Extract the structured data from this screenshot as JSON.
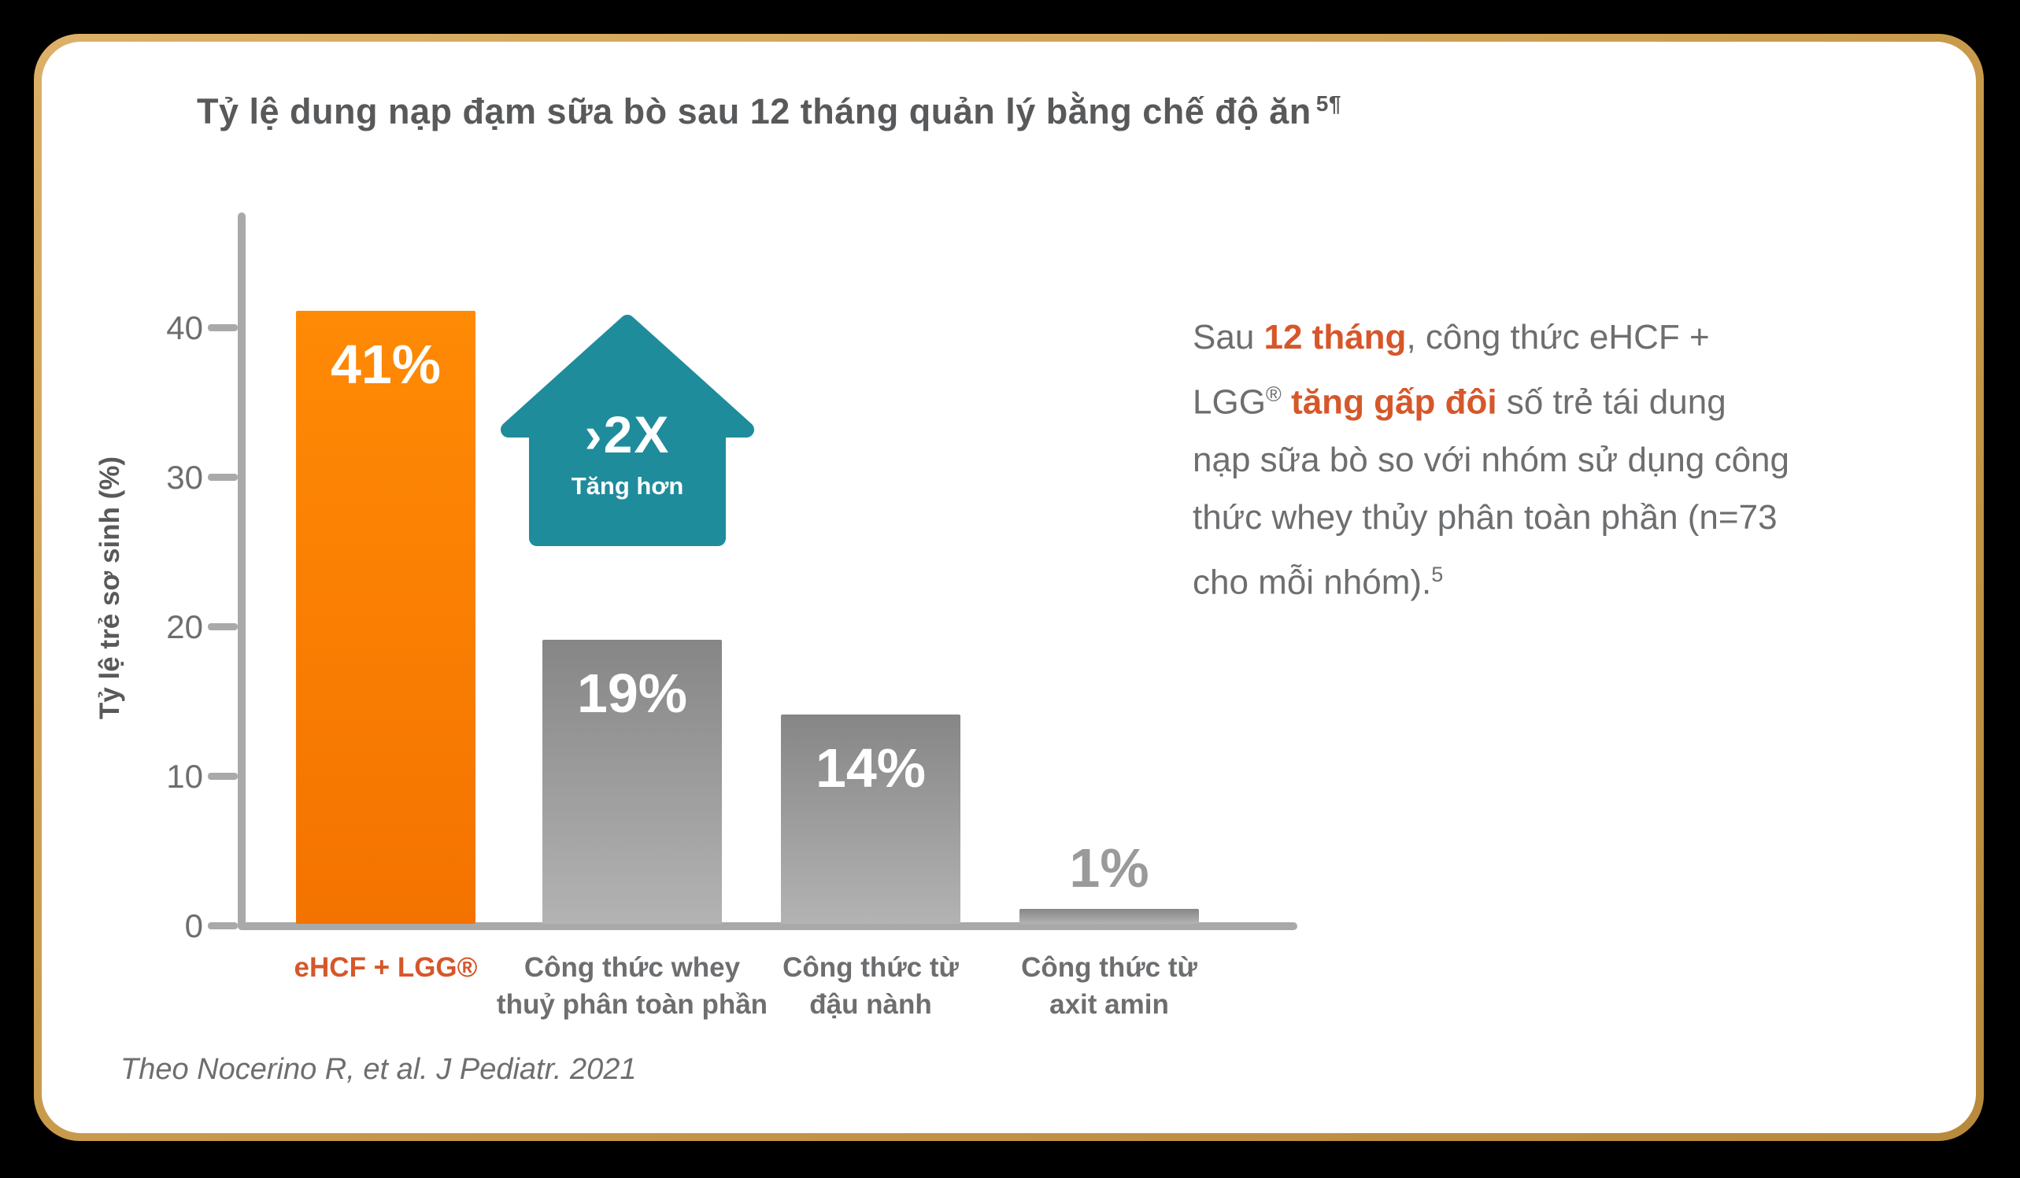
{
  "page": {
    "background_color": "#000000",
    "card_fill": "#ffffff",
    "card_border_gold": "#c89a4b"
  },
  "title": {
    "text": "Tỷ lệ dung nạp đạm sữa bò sau 12 tháng quản lý bằng chế độ ăn",
    "superscript": "5¶",
    "color": "#58595b"
  },
  "chart_data": {
    "type": "bar",
    "title": "Tỷ lệ dung nạp đạm sữa bò sau 12 tháng quản lý bằng chế độ ăn 5¶",
    "xlabel": "",
    "ylabel": "Tỷ lệ trẻ sơ sinh (%)",
    "ylim": [
      0,
      47
    ],
    "yticks": [
      0,
      10,
      20,
      30,
      40
    ],
    "grid": false,
    "legend": "none",
    "categories": [
      "eHCF + LGG®",
      "Công thức whey\nthuỷ phân toàn phần",
      "Công thức từ\nđậu nành",
      "Công thức từ\naxit amin"
    ],
    "values": [
      41,
      19,
      14,
      1
    ],
    "value_labels": [
      "41%",
      "19%",
      "14%",
      "1%"
    ],
    "bar_gradients": [
      {
        "top": "#ff8a05",
        "bottom": "#f47300"
      },
      {
        "top": "#868686",
        "bottom": "#b3b3b3"
      },
      {
        "top": "#868686",
        "bottom": "#b3b3b3"
      },
      {
        "top": "#868686",
        "bottom": "#b3b3b3"
      }
    ],
    "category_colors": [
      "#d6572a",
      "#6d6e70",
      "#6d6e70",
      "#6d6e70"
    ],
    "outside_label_color": "#9a9a9a",
    "axis_color": "#a9a9a9"
  },
  "arrow_badge": {
    "value": "›2X",
    "caption": "Tăng hơn",
    "color": "#1f8c9b"
  },
  "annotation": {
    "segments": [
      {
        "text": "Sau ",
        "style": "normal"
      },
      {
        "text": "12 tháng",
        "style": "accent"
      },
      {
        "text": ", công thức eHCF + LGG",
        "style": "normal"
      },
      {
        "text": "®",
        "style": "sup"
      },
      {
        "text": " ",
        "style": "normal"
      },
      {
        "text": "tăng gấp đôi",
        "style": "accent"
      },
      {
        "text": " số trẻ tái dung nạp sữa bò so với nhóm sử dụng công thức whey thủy phân toàn phần (n=73 cho mỗi nhóm).",
        "style": "normal"
      },
      {
        "text": "5",
        "style": "sup"
      }
    ]
  },
  "citation": {
    "text": "Theo Nocerino R, et al. J Pediatr. 2021"
  }
}
